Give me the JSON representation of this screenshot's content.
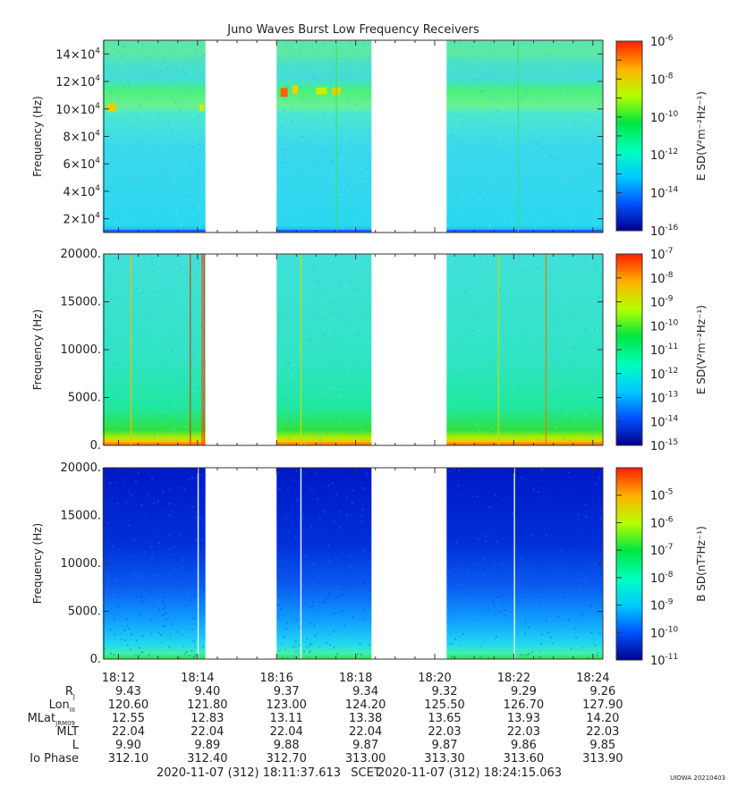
{
  "chart_data": {
    "type": "heatmap",
    "title": "Juno Waves Burst Low Frequency Receivers",
    "time_ticks": [
      "18:12",
      "18:14",
      "18:16",
      "18:18",
      "18:20",
      "18:22",
      "18:24"
    ],
    "data_segments_minutes": [
      [
        11.6,
        14.2
      ],
      [
        16.0,
        18.4
      ],
      [
        20.3,
        24.5
      ]
    ],
    "panels": [
      {
        "ylabel": "Frequency (Hz)",
        "ylim": [
          10000,
          150000
        ],
        "ytick_labels": [
          {
            "m": "2",
            "e": "4",
            "v": 20000
          },
          {
            "m": "4",
            "e": "4",
            "v": 40000
          },
          {
            "m": "6",
            "e": "4",
            "v": 60000
          },
          {
            "m": "8",
            "e": "4",
            "v": 80000
          },
          {
            "m": "10",
            "e": "4",
            "v": 100000
          },
          {
            "m": "12",
            "e": "4",
            "v": 120000
          },
          {
            "m": "14",
            "e": "4",
            "v": 140000
          }
        ],
        "colorbar_label": "E SD(V²m⁻²Hz⁻¹)",
        "colorbar_exponents": [
          -16,
          -6
        ],
        "colorbar_tick_labels": [
          {
            "e": "-6",
            "v": -6
          },
          {
            "e": "-8",
            "v": -8
          },
          {
            "e": "-10",
            "v": -10
          },
          {
            "e": "-12",
            "v": -12
          },
          {
            "e": "-14",
            "v": -14
          },
          {
            "e": "-16",
            "v": -16
          }
        ]
      },
      {
        "ylabel": "Frequency (Hz)",
        "ylim": [
          0,
          20000
        ],
        "ytick_labels": [
          {
            "t": "20000.",
            "v": 20000
          },
          {
            "t": "15000.",
            "v": 15000
          },
          {
            "t": "10000.",
            "v": 10000
          },
          {
            "t": "5000.",
            "v": 5000
          },
          {
            "t": "0.",
            "v": 0
          }
        ],
        "colorbar_label": "E SD(V²m⁻²Hz⁻¹)",
        "colorbar_exponents": [
          -15,
          -7
        ],
        "colorbar_tick_labels": [
          {
            "e": "-7",
            "v": -7
          },
          {
            "e": "-8",
            "v": -8
          },
          {
            "e": "-9",
            "v": -9
          },
          {
            "e": "-10",
            "v": -10
          },
          {
            "e": "-11",
            "v": -11
          },
          {
            "e": "-12",
            "v": -12
          },
          {
            "e": "-13",
            "v": -13
          },
          {
            "e": "-14",
            "v": -14
          },
          {
            "e": "-15",
            "v": -15
          }
        ]
      },
      {
        "ylabel": "Frequency (Hz)",
        "ylim": [
          0,
          20000
        ],
        "ytick_labels": [
          {
            "t": "20000.",
            "v": 20000
          },
          {
            "t": "15000.",
            "v": 15000
          },
          {
            "t": "10000.",
            "v": 10000
          },
          {
            "t": "5000.",
            "v": 5000
          },
          {
            "t": "0.",
            "v": 0
          }
        ],
        "colorbar_label": "B SD(nT²Hz⁻¹)",
        "colorbar_exponents": [
          -11,
          -4
        ],
        "colorbar_tick_labels": [
          {
            "e": "-5",
            "v": -5
          },
          {
            "e": "-6",
            "v": -6
          },
          {
            "e": "-7",
            "v": -7
          },
          {
            "e": "-8",
            "v": -8
          },
          {
            "e": "-9",
            "v": -9
          },
          {
            "e": "-10",
            "v": -10
          },
          {
            "e": "-11",
            "v": -11
          }
        ]
      }
    ],
    "ephemeris": [
      {
        "label": "R",
        "sub": "J",
        "values": [
          "9.43",
          "9.40",
          "9.37",
          "9.34",
          "9.32",
          "9.29",
          "9.26"
        ]
      },
      {
        "label": "Lon",
        "sub": "III",
        "values": [
          "120.60",
          "121.80",
          "123.00",
          "124.20",
          "125.50",
          "126.70",
          "127.90"
        ]
      },
      {
        "label": "MLat",
        "sub": "JRM09",
        "values": [
          "12.55",
          "12.83",
          "13.11",
          "13.38",
          "13.65",
          "13.93",
          "14.20"
        ]
      },
      {
        "label": "MLT",
        "sub": "",
        "values": [
          "22.04",
          "22.04",
          "22.04",
          "22.04",
          "22.03",
          "22.03",
          "22.03"
        ]
      },
      {
        "label": "L",
        "sub": "",
        "values": [
          "9.90",
          "9.89",
          "9.88",
          "9.87",
          "9.87",
          "9.86",
          "9.85"
        ]
      },
      {
        "label": "Io Phase",
        "sub": "",
        "values": [
          "312.10",
          "312.40",
          "312.70",
          "313.00",
          "313.30",
          "313.60",
          "313.90"
        ]
      }
    ],
    "time_range_start": "2020-11-07 (312) 18:11:37.613",
    "scet_label": "SCET",
    "time_range_end": "2020-11-07 (312) 18:24:15.063",
    "credit": "UIOWA 20210403"
  }
}
